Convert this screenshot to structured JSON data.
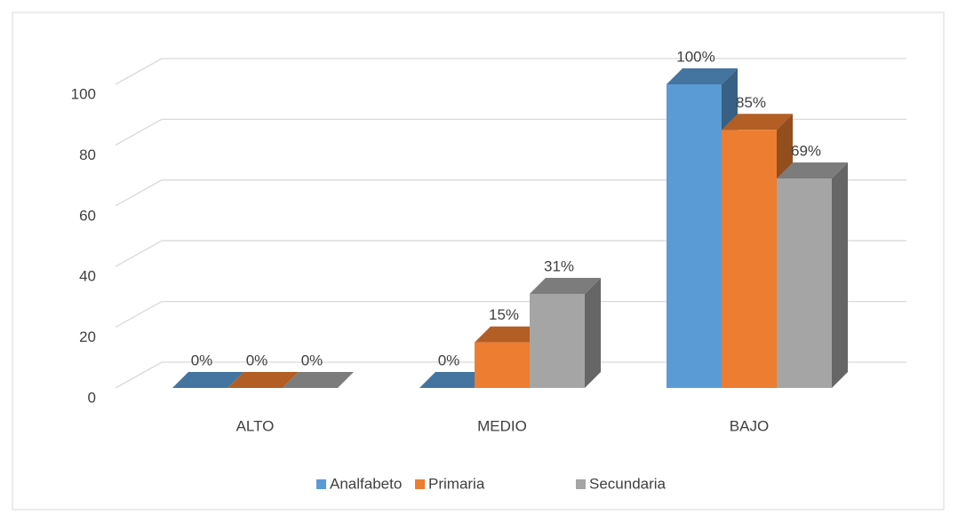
{
  "chart_data": {
    "type": "bar3d",
    "categories": [
      "ALTO",
      "MEDIO",
      "BAJO"
    ],
    "series": [
      {
        "name": "Analfabeto",
        "color": "#5b9bd5",
        "values": [
          0,
          0,
          100
        ],
        "value_labels": [
          "0%",
          "0%",
          "100%"
        ]
      },
      {
        "name": "Primaria",
        "color": "#ed7d31",
        "values": [
          0,
          15,
          85
        ],
        "value_labels": [
          "0%",
          "15%",
          "85%"
        ]
      },
      {
        "name": "Secundaria",
        "color": "#a5a5a5",
        "values": [
          0,
          31,
          69
        ],
        "value_labels": [
          "0%",
          "31%",
          "69%"
        ]
      }
    ],
    "ylim": [
      0,
      100
    ],
    "yticks": [
      0,
      20,
      40,
      60,
      80,
      100
    ],
    "grid": true,
    "legend": "bottom"
  }
}
